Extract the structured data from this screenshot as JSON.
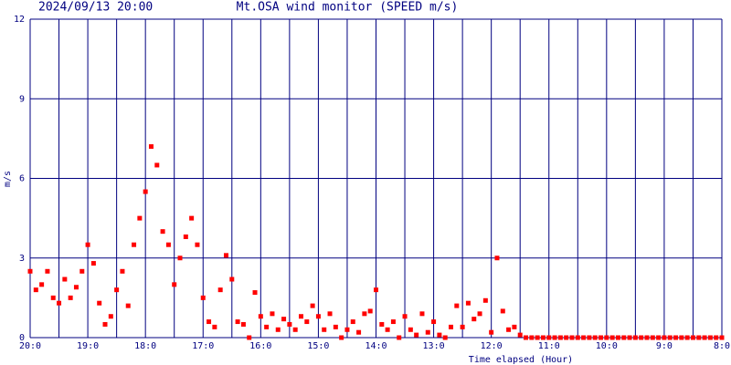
{
  "chart_data": {
    "type": "scatter",
    "title": "Mt.OSA wind monitor (SPEED m/s)",
    "subtitle": "2024/09/13 20:00",
    "y_label": "m/s",
    "x_label": "Time elapsed (Hour)",
    "color": "#ff0000",
    "grid": true,
    "xlim": [
      0,
      12
    ],
    "ylim": [
      0,
      12
    ],
    "yticks": [
      0,
      3,
      6,
      9,
      12
    ],
    "xticks": [
      {
        "value": 0,
        "label": "20:0"
      },
      {
        "value": 1,
        "label": "19:0"
      },
      {
        "value": 2,
        "label": "18:0"
      },
      {
        "value": 3,
        "label": "17:0"
      },
      {
        "value": 4,
        "label": "16:0"
      },
      {
        "value": 5,
        "label": "15:0"
      },
      {
        "value": 6,
        "label": "14:0"
      },
      {
        "value": 7,
        "label": "13:0"
      },
      {
        "value": 8,
        "label": "12:0"
      },
      {
        "value": 9,
        "label": "11:0"
      },
      {
        "value": 10,
        "label": "10:0"
      },
      {
        "value": 11,
        "label": "9:0"
      },
      {
        "value": 12,
        "label": "8:0"
      }
    ],
    "x": [
      0,
      0.1,
      0.2,
      0.3,
      0.4,
      0.5,
      0.6,
      0.7,
      0.8,
      0.9,
      1,
      1.1,
      1.2,
      1.3,
      1.4,
      1.5,
      1.6,
      1.7,
      1.8,
      1.9,
      2,
      2.1,
      2.2,
      2.3,
      2.4,
      2.5,
      2.6,
      2.7,
      2.8,
      2.9,
      3,
      3.1,
      3.2,
      3.3,
      3.4,
      3.5,
      3.6,
      3.7,
      3.8,
      3.9,
      4,
      4.1,
      4.2,
      4.3,
      4.4,
      4.5,
      4.6,
      4.7,
      4.8,
      4.9,
      5,
      5.1,
      5.2,
      5.3,
      5.4,
      5.5,
      5.6,
      5.7,
      5.8,
      5.9,
      6,
      6.1,
      6.2,
      6.3,
      6.4,
      6.5,
      6.6,
      6.7,
      6.8,
      6.9,
      7,
      7.1,
      7.2,
      7.3,
      7.4,
      7.5,
      7.6,
      7.7,
      7.8,
      7.9,
      8,
      8.1,
      8.2,
      8.3,
      8.4,
      8.5,
      8.6,
      8.7,
      8.8,
      8.9,
      9,
      9.1,
      9.2,
      9.3,
      9.4,
      9.5,
      9.6,
      9.7,
      9.8,
      9.9,
      10,
      10.1,
      10.2,
      10.3,
      10.4,
      10.5,
      10.6,
      10.7,
      10.8,
      10.9,
      11,
      11.1,
      11.2,
      11.3,
      11.4,
      11.5,
      11.6,
      11.7,
      11.8,
      11.9,
      12
    ],
    "values": [
      2.5,
      1.8,
      2.0,
      2.5,
      1.5,
      1.3,
      2.2,
      1.5,
      1.9,
      2.5,
      3.5,
      2.8,
      1.3,
      0.5,
      0.8,
      1.8,
      2.5,
      1.2,
      3.5,
      4.5,
      5.5,
      7.2,
      6.5,
      4.0,
      3.5,
      2.0,
      3.0,
      3.8,
      4.5,
      3.5,
      1.5,
      0.6,
      0.4,
      1.8,
      3.1,
      2.2,
      0.6,
      0.5,
      0,
      1.7,
      0.8,
      0.4,
      0.9,
      0.3,
      0.7,
      0.5,
      0.3,
      0.8,
      0.6,
      1.2,
      0.8,
      0.3,
      0.9,
      0.4,
      0,
      0.3,
      0.6,
      0.2,
      0.9,
      1.0,
      1.8,
      0.5,
      0.3,
      0.6,
      0,
      0.8,
      0.3,
      0.1,
      0.9,
      0.2,
      0.6,
      0.1,
      0,
      0.4,
      1.2,
      0.4,
      1.3,
      0.7,
      0.9,
      1.4,
      0.2,
      3.0,
      1.0,
      0.3,
      0.4,
      0.1,
      0,
      0,
      0,
      0,
      0,
      0,
      0,
      0,
      0,
      0,
      0,
      0,
      0,
      0,
      0,
      0,
      0,
      0,
      0,
      0,
      0,
      0,
      0,
      0,
      0,
      0,
      0,
      0,
      0,
      0,
      0,
      0,
      0,
      0,
      0
    ]
  }
}
